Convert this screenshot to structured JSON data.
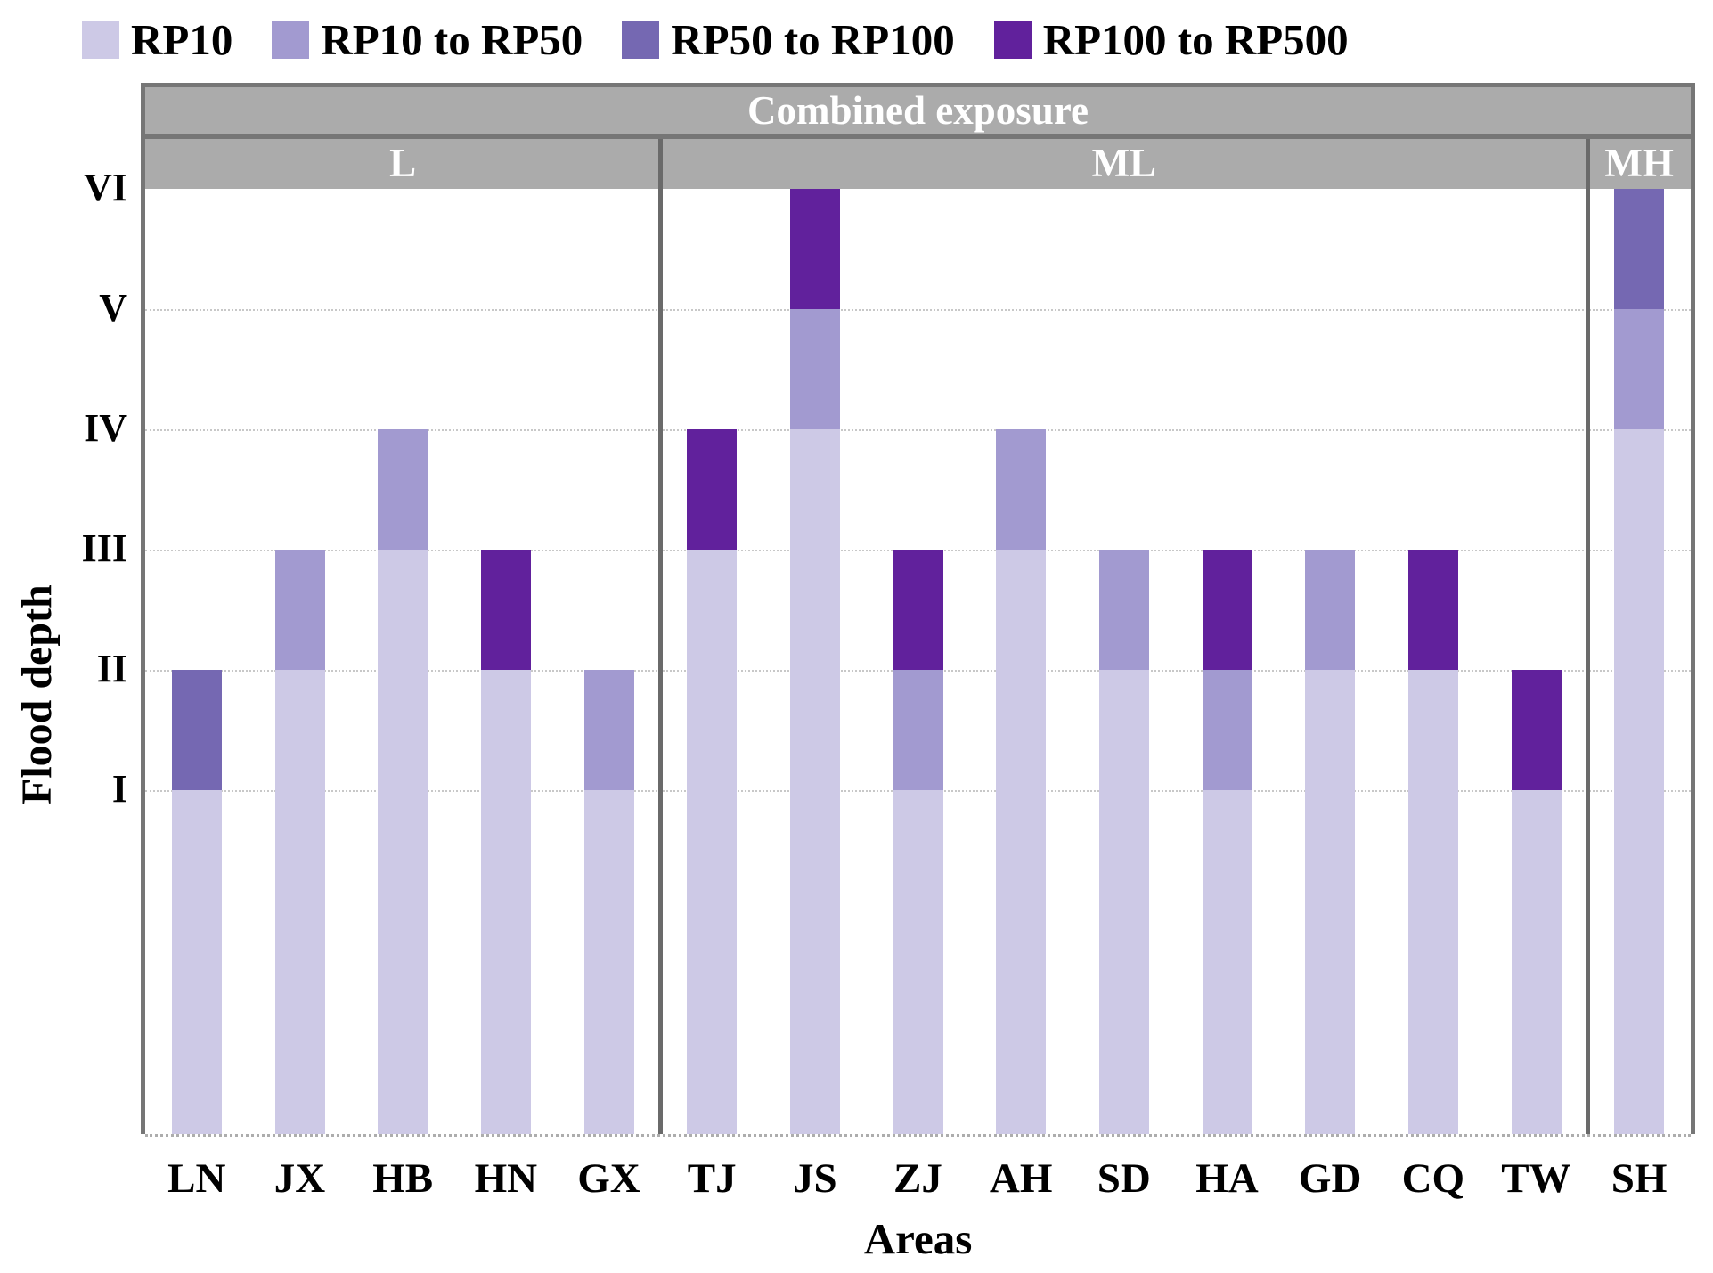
{
  "legend": {
    "note": "legend reads series names/colors from chart_data.series"
  },
  "chart_data": {
    "type": "bar",
    "stacked": true,
    "band_title": "Combined exposure",
    "groups": [
      {
        "label": "L",
        "categories": [
          "LN",
          "JX",
          "HB",
          "HN",
          "GX"
        ]
      },
      {
        "label": "ML",
        "categories": [
          "TJ",
          "JS",
          "ZJ",
          "AH",
          "SD",
          "HA",
          "GD",
          "CQ",
          "TW"
        ]
      },
      {
        "label": "MH",
        "categories": [
          "SH"
        ]
      }
    ],
    "categories": [
      "LN",
      "JX",
      "HB",
      "HN",
      "GX",
      "TJ",
      "JS",
      "ZJ",
      "AH",
      "SD",
      "HA",
      "GD",
      "CQ",
      "TW",
      "SH"
    ],
    "series": [
      {
        "name": "RP10",
        "color": "#cdc9e6",
        "values": [
          1,
          2,
          3,
          2,
          1,
          3,
          4,
          1,
          3,
          2,
          1,
          2,
          2,
          1,
          4
        ]
      },
      {
        "name": "RP10 to RP50",
        "color": "#a29ad0",
        "values": [
          0,
          1,
          1,
          0,
          1,
          0,
          1,
          1,
          1,
          1,
          1,
          1,
          0,
          0,
          1
        ]
      },
      {
        "name": "RP50 to RP100",
        "color": "#7568b2",
        "values": [
          1,
          0,
          0,
          0,
          0,
          0,
          0,
          0,
          0,
          0,
          0,
          0,
          0,
          0,
          1
        ]
      },
      {
        "name": "RP100 to RP500",
        "color": "#61219c",
        "values": [
          0,
          0,
          0,
          1,
          0,
          1,
          1,
          1,
          0,
          0,
          1,
          0,
          1,
          1,
          0
        ]
      }
    ],
    "bar_totals": {
      "LN": 2,
      "JX": 3,
      "HB": 4,
      "HN": 3,
      "GX": 2,
      "TJ": 4,
      "JS": 6,
      "ZJ": 3,
      "AH": 4,
      "SD": 3,
      "HA": 3,
      "GD": 3,
      "CQ": 3,
      "TW": 2,
      "SH": 6
    },
    "xlabel": "Areas",
    "ylabel": "Flood depth",
    "yticks": [
      "I",
      "II",
      "III",
      "IV",
      "V",
      "VI"
    ],
    "ylim": [
      0,
      6
    ],
    "grid": true,
    "legend_position": "top",
    "colors": {
      "header_band": "#ababab",
      "frame_border": "#767676",
      "band_text": "#ffffff",
      "gridline": "#c8c8c8"
    }
  }
}
